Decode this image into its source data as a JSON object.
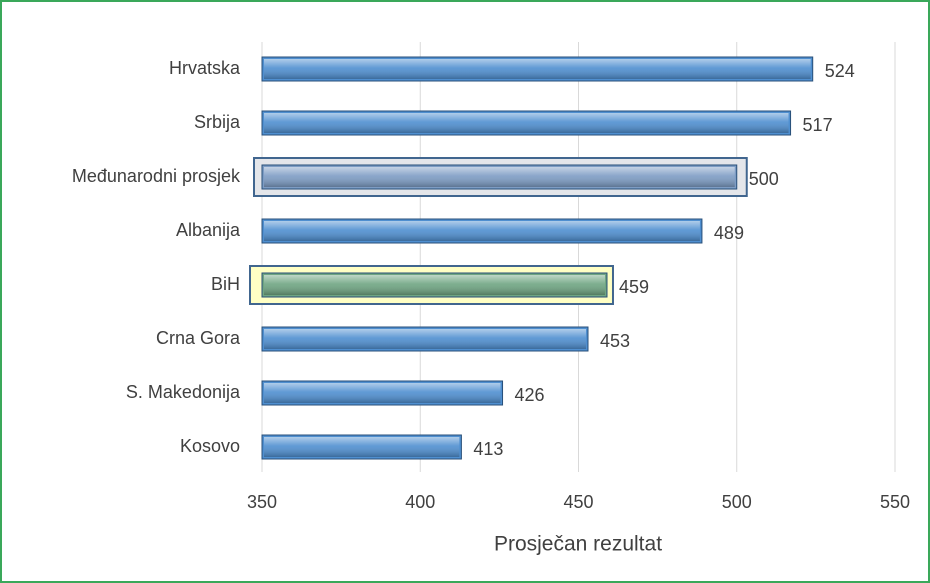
{
  "chart_data": {
    "type": "barh",
    "categories": [
      "Hrvatska",
      "Srbija",
      "Međunarodni prosjek",
      "Albanija",
      "BiH",
      "Crna Gora",
      "S. Makedonija",
      "Kosovo"
    ],
    "values": [
      524,
      517,
      500,
      489,
      459,
      453,
      426,
      413
    ],
    "colors": [
      "#4f8fd0",
      "#4f8fd0",
      "#7d9cc4",
      "#4f8fd0",
      "#6fa582",
      "#4f8fd0",
      "#4f8fd0",
      "#4f8fd0"
    ],
    "highlight_fills": [
      null,
      null,
      "#e4e6ea",
      null,
      "#ffffc4",
      null,
      null,
      null
    ],
    "xlabel": "Prosječan rezultat",
    "xlim": [
      350,
      550
    ],
    "xticks": [
      350,
      400,
      450,
      500,
      550
    ],
    "grid": true
  }
}
